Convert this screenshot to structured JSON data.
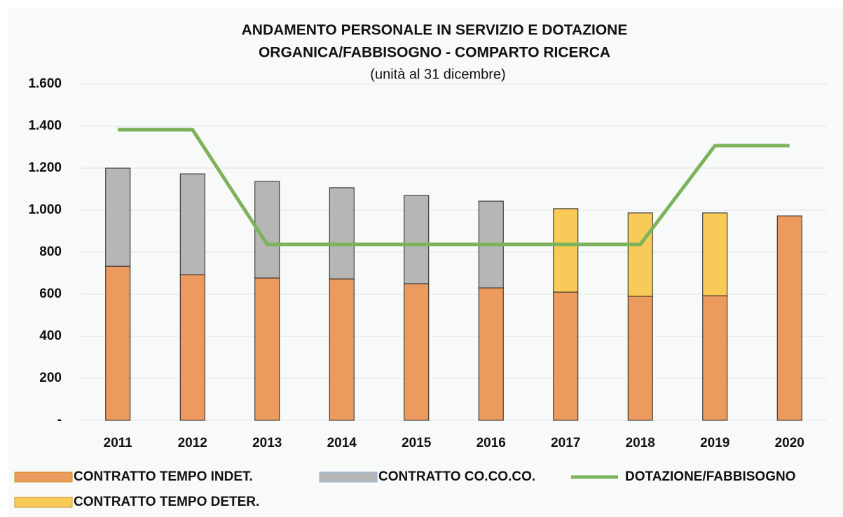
{
  "chart_data": {
    "type": "bar",
    "title": [
      "ANDAMENTO PERSONALE IN SERVIZIO E DOTAZIONE",
      "ORGANICA/FABBISOGNO  - COMPARTO RICERCA"
    ],
    "subtitle": "(unità al 31 dicembre)",
    "categories": [
      "2011",
      "2012",
      "2013",
      "2014",
      "2015",
      "2016",
      "2017",
      "2018",
      "2019",
      "2020"
    ],
    "stacked": true,
    "series": [
      {
        "name": "CONTRATTO TEMPO INDET.",
        "color": "#ec9a5e",
        "values": [
          733,
          693,
          677,
          673,
          650,
          630,
          610,
          590,
          593,
          973
        ]
      },
      {
        "name": "CONTRATTO CO.CO.CO.",
        "color": "#b6b6b6",
        "values": [
          467,
          480,
          460,
          434,
          420,
          413,
          null,
          null,
          null,
          null
        ]
      },
      {
        "name": "CONTRATTO TEMPO DETER.",
        "color": "#f8cb58",
        "values": [
          null,
          null,
          null,
          null,
          null,
          null,
          397,
          397,
          394,
          null
        ]
      },
      {
        "name": "DOTAZIONE/FABBISOGNO",
        "color": "#7db35c",
        "type": "line",
        "values": [
          1383,
          1383,
          837,
          837,
          837,
          837,
          837,
          837,
          1307,
          1307
        ]
      }
    ],
    "ylim": [
      0,
      1600
    ],
    "yticks": [
      {
        "value": 0,
        "label": "-"
      },
      200,
      400,
      600,
      800,
      {
        "value": 1000,
        "label": "1.000"
      },
      {
        "value": 1200,
        "label": "1.200"
      },
      {
        "value": 1400,
        "label": "1.400"
      },
      {
        "value": 1600,
        "label": "1.600"
      }
    ],
    "grid": true,
    "legend": "bottom"
  }
}
